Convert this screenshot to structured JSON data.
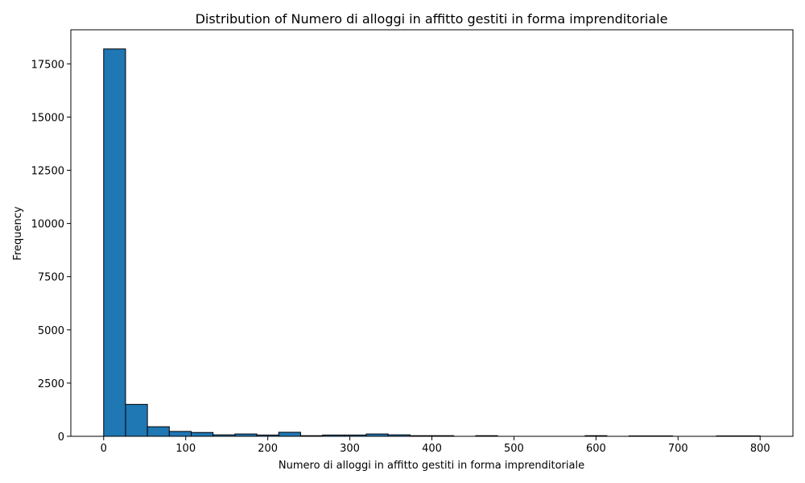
{
  "chart_data": {
    "type": "bar",
    "title": "Distribution of Numero di alloggi in affitto gestiti in forma imprenditoriale",
    "xlabel": "Numero di alloggi in affitto gestiti in forma imprenditoriale",
    "ylabel": "Frequency",
    "xlim": [
      -40,
      840
    ],
    "ylim": [
      0,
      19100
    ],
    "x_ticks": [
      0,
      100,
      200,
      300,
      400,
      500,
      600,
      700,
      800
    ],
    "y_ticks": [
      0,
      2500,
      5000,
      7500,
      10000,
      12500,
      15000,
      17500
    ],
    "bin_width": 26.67,
    "bins": [
      {
        "start": 0,
        "end": 26.67,
        "count": 18200
      },
      {
        "start": 26.67,
        "end": 53.33,
        "count": 1500
      },
      {
        "start": 53.33,
        "end": 80,
        "count": 450
      },
      {
        "start": 80,
        "end": 106.67,
        "count": 230
      },
      {
        "start": 106.67,
        "end": 133.33,
        "count": 180
      },
      {
        "start": 133.33,
        "end": 160,
        "count": 70
      },
      {
        "start": 160,
        "end": 186.67,
        "count": 110
      },
      {
        "start": 186.67,
        "end": 213.33,
        "count": 60
      },
      {
        "start": 213.33,
        "end": 240,
        "count": 190
      },
      {
        "start": 240,
        "end": 266.67,
        "count": 30
      },
      {
        "start": 266.67,
        "end": 293.33,
        "count": 60
      },
      {
        "start": 293.33,
        "end": 320,
        "count": 60
      },
      {
        "start": 320,
        "end": 346.67,
        "count": 110
      },
      {
        "start": 346.67,
        "end": 373.33,
        "count": 70
      },
      {
        "start": 373.33,
        "end": 400,
        "count": 30
      },
      {
        "start": 400,
        "end": 426.67,
        "count": 30
      },
      {
        "start": 426.67,
        "end": 453.33,
        "count": 0
      },
      {
        "start": 453.33,
        "end": 480,
        "count": 30
      },
      {
        "start": 480,
        "end": 506.67,
        "count": 0
      },
      {
        "start": 506.67,
        "end": 533.33,
        "count": 0
      },
      {
        "start": 533.33,
        "end": 560,
        "count": 0
      },
      {
        "start": 560,
        "end": 586.67,
        "count": 0
      },
      {
        "start": 586.67,
        "end": 613.33,
        "count": 30
      },
      {
        "start": 613.33,
        "end": 640,
        "count": 0
      },
      {
        "start": 640,
        "end": 666.67,
        "count": 20
      },
      {
        "start": 666.67,
        "end": 693.33,
        "count": 20
      },
      {
        "start": 693.33,
        "end": 720,
        "count": 0
      },
      {
        "start": 720,
        "end": 746.67,
        "count": 0
      },
      {
        "start": 746.67,
        "end": 773.33,
        "count": 20
      },
      {
        "start": 773.33,
        "end": 800,
        "count": 20
      }
    ],
    "bar_color": "#1f77b4",
    "edge_color": "#000000",
    "grid": false,
    "legend": "none"
  }
}
